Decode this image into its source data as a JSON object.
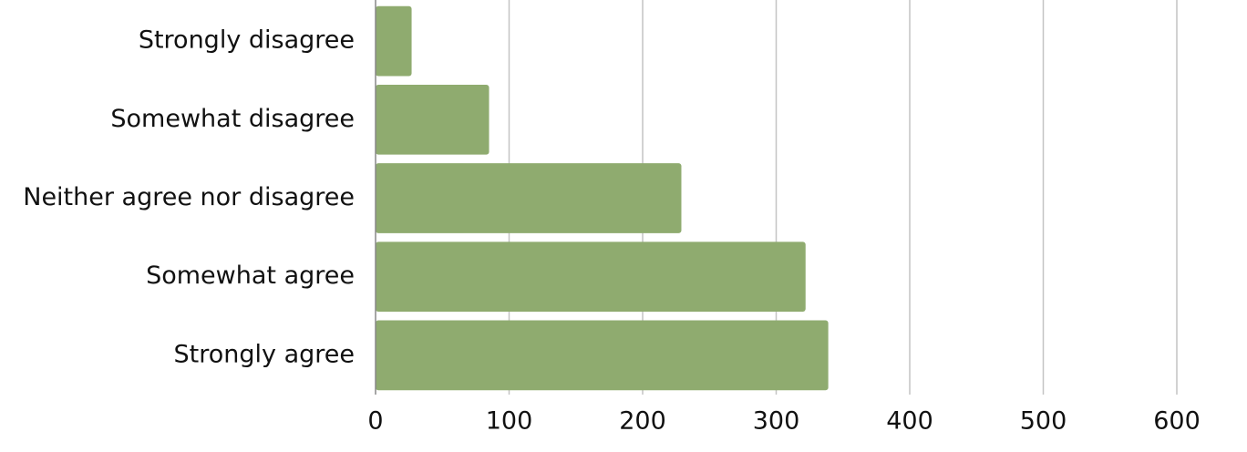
{
  "chart_data": {
    "type": "bar",
    "orientation": "horizontal",
    "categories": [
      "Strongly disagree",
      "Somewhat disagree",
      "Neither agree nor disagree",
      "Somewhat agree",
      "Strongly agree"
    ],
    "values": [
      27,
      85,
      229,
      322,
      339
    ],
    "color": "#8fab6f",
    "xlim": [
      0,
      600
    ],
    "xticks": [
      0,
      100,
      200,
      300,
      400,
      500,
      600
    ],
    "grid": true
  }
}
